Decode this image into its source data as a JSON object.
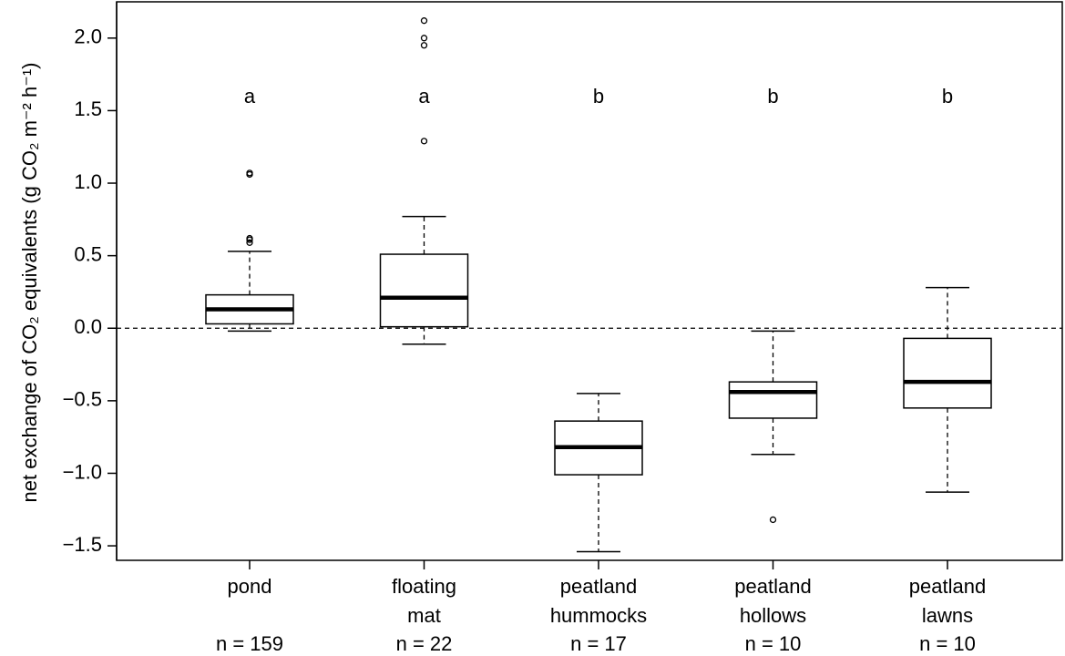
{
  "chart_data": {
    "type": "boxplot",
    "y_label": "net exchange of CO₂ equivalents (g CO₂ m⁻² h⁻¹)",
    "categories": [
      [
        "pond"
      ],
      [
        "floating",
        "mat"
      ],
      [
        "peatland",
        "hummocks"
      ],
      [
        "peatland",
        "hollows"
      ],
      [
        "peatland",
        "lawns"
      ]
    ],
    "sample_labels": [
      "n = 159",
      "n = 22",
      "n = 17",
      "n = 10",
      "n = 10"
    ],
    "group_letters": [
      "a",
      "a",
      "b",
      "b",
      "b"
    ],
    "boxes": [
      {
        "whisker_low": -0.02,
        "q1": 0.03,
        "median": 0.13,
        "q3": 0.23,
        "whisker_high": 0.53,
        "outliers": [
          0.59,
          0.61,
          0.62,
          1.06,
          1.07
        ]
      },
      {
        "whisker_low": -0.11,
        "q1": 0.01,
        "median": 0.21,
        "q3": 0.51,
        "whisker_high": 0.77,
        "outliers": [
          1.29,
          1.95,
          2.0,
          2.12
        ]
      },
      {
        "whisker_low": -1.54,
        "q1": -1.01,
        "median": -0.82,
        "q3": -0.64,
        "whisker_high": -0.45,
        "outliers": []
      },
      {
        "whisker_low": -0.87,
        "q1": -0.62,
        "median": -0.44,
        "q3": -0.37,
        "whisker_high": -0.02,
        "outliers": [
          -1.32
        ]
      },
      {
        "whisker_low": -1.13,
        "q1": -0.55,
        "median": -0.37,
        "q3": -0.07,
        "whisker_high": 0.28,
        "outliers": []
      }
    ],
    "reference_line": 0,
    "ylim": [
      -1.6,
      2.25
    ],
    "yticks": [
      {
        "value": -1.5,
        "label": "−1.5"
      },
      {
        "value": -1.0,
        "label": "−1.0"
      },
      {
        "value": -0.5,
        "label": "−0.5"
      },
      {
        "value": 0,
        "label": "0.0"
      },
      0.5,
      {
        "value": 1.0,
        "label": "1.0"
      },
      1.5,
      {
        "value": 2.0,
        "label": "2.0"
      }
    ],
    "color": "#000000",
    "fill": "#ffffff"
  }
}
